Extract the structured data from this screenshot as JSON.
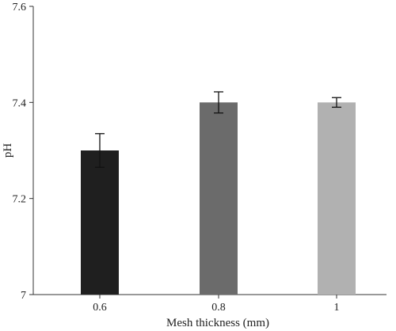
{
  "chart_data": {
    "type": "bar",
    "categories": [
      "0.6",
      "0.8",
      "1"
    ],
    "values": [
      7.3,
      7.4,
      7.4
    ],
    "errors": [
      0.035,
      0.022,
      0.01
    ],
    "colors": [
      "#1f1f1f",
      "#6b6b6b",
      "#b1b1b1"
    ],
    "xlabel": "Mesh thickness (mm)",
    "ylabel": "pH",
    "ylim": [
      7.0,
      7.6
    ],
    "yticks": [
      7.0,
      7.2,
      7.4,
      7.6
    ],
    "ytick_labels": [
      "7",
      "7.2",
      "7.4",
      "7.6"
    ],
    "grid": false
  }
}
